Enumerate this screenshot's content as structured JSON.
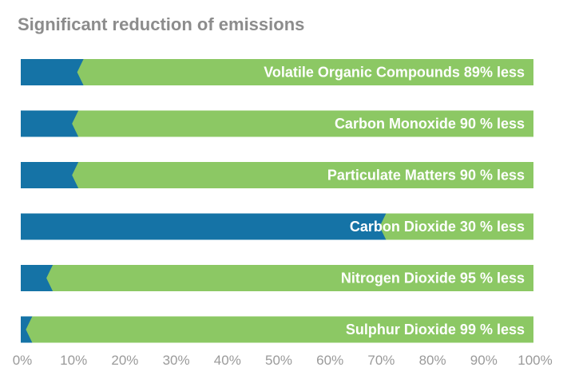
{
  "title": "Significant reduction of emissions",
  "colors": {
    "remaining": "#1573a6",
    "reduction": "#8cc864",
    "label": "#ffffff",
    "tick": "#9a9a9a"
  },
  "chart_data": {
    "type": "bar",
    "orientation": "horizontal",
    "stacked": true,
    "title": "Significant reduction of emissions",
    "xlabel": "",
    "ylabel": "",
    "xlim": [
      0,
      100
    ],
    "x_tick_labels": [
      "0%",
      "10%",
      "20%",
      "30%",
      "40%",
      "50%",
      "60%",
      "70%",
      "80%",
      "90%",
      "100%"
    ],
    "bars": [
      {
        "label": "Volatile Organic Compounds 89% less",
        "reduction": 89
      },
      {
        "label": "Carbon Monoxide 90 % less",
        "reduction": 90
      },
      {
        "label": "Particulate Matters 90 % less",
        "reduction": 90
      },
      {
        "label": "Carbon Dioxide 30 % less",
        "reduction": 30
      },
      {
        "label": "Nitrogen Dioxide 95 % less",
        "reduction": 95
      },
      {
        "label": "Sulphur Dioxide 99 % less",
        "reduction": 99
      }
    ],
    "grid": false,
    "legend": "none"
  }
}
